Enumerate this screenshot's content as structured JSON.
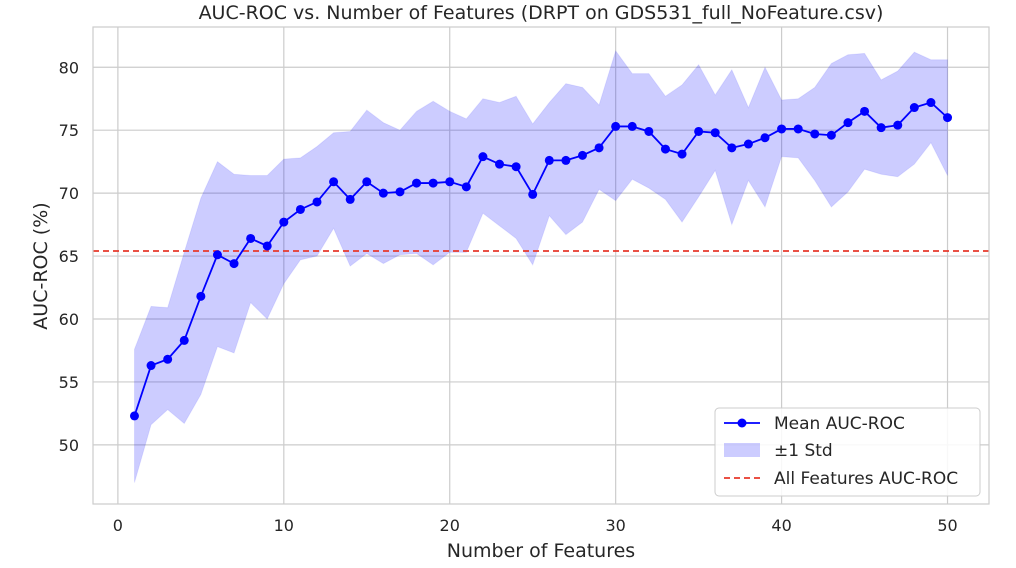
{
  "chart_data": {
    "type": "line",
    "title": "AUC-ROC vs. Number of Features (DRPT on GDS531_full_NoFeature.csv)",
    "xlabel": "Number of Features",
    "ylabel": "AUC-ROC (%)",
    "xlim": [
      -1.5,
      52.5
    ],
    "ylim": [
      45.3,
      83.2
    ],
    "xticks": [
      0,
      10,
      20,
      30,
      40,
      50
    ],
    "yticks": [
      50,
      55,
      60,
      65,
      70,
      75,
      80
    ],
    "grid": true,
    "legend_position": "lower-right",
    "x": [
      1,
      2,
      3,
      4,
      5,
      6,
      7,
      8,
      9,
      10,
      11,
      12,
      13,
      14,
      15,
      16,
      17,
      18,
      19,
      20,
      21,
      22,
      23,
      24,
      25,
      26,
      27,
      28,
      29,
      30,
      31,
      32,
      33,
      34,
      35,
      36,
      37,
      38,
      39,
      40,
      41,
      42,
      43,
      44,
      45,
      46,
      47,
      48,
      49,
      50
    ],
    "series": [
      {
        "name": "Mean AUC-ROC",
        "color": "#0000ff",
        "marker": "circle",
        "values": [
          52.3,
          56.3,
          56.8,
          58.3,
          61.8,
          65.1,
          64.4,
          66.4,
          65.8,
          67.7,
          68.7,
          69.3,
          70.9,
          69.5,
          70.9,
          70.0,
          70.1,
          70.8,
          70.8,
          70.9,
          70.5,
          72.9,
          72.3,
          72.1,
          69.9,
          72.6,
          72.6,
          73.0,
          73.6,
          75.3,
          75.3,
          74.9,
          73.5,
          73.1,
          74.9,
          74.8,
          73.6,
          73.9,
          74.4,
          75.1,
          75.1,
          74.7,
          74.6,
          75.6,
          76.5,
          75.2,
          75.4,
          76.8,
          77.2,
          76.0
        ]
      },
      {
        "name": "±1 Std",
        "color": "#0000ff",
        "fill_opacity": 0.2,
        "upper": [
          57.6,
          61.0,
          60.9,
          65.3,
          69.6,
          72.5,
          71.5,
          71.4,
          71.4,
          72.7,
          72.8,
          73.7,
          74.8,
          74.9,
          76.6,
          75.6,
          75.0,
          76.5,
          77.3,
          76.5,
          75.9,
          77.5,
          77.2,
          77.7,
          75.5,
          77.2,
          78.7,
          78.4,
          77.0,
          81.3,
          79.5,
          79.5,
          77.7,
          78.6,
          80.2,
          77.8,
          79.8,
          76.8,
          80.0,
          77.4,
          77.5,
          78.4,
          80.3,
          81.0,
          81.1,
          79.0,
          79.7,
          81.2,
          80.6,
          80.6
        ],
        "lower": [
          47.0,
          51.6,
          52.8,
          51.7,
          54.0,
          57.8,
          57.3,
          61.3,
          60.0,
          62.8,
          64.7,
          65.0,
          67.2,
          64.2,
          65.2,
          64.4,
          65.1,
          65.2,
          64.3,
          65.3,
          65.3,
          68.4,
          67.4,
          66.4,
          64.3,
          68.2,
          66.7,
          67.7,
          70.3,
          69.4,
          71.1,
          70.4,
          69.5,
          67.7,
          69.7,
          71.8,
          67.5,
          71.0,
          68.9,
          72.9,
          72.8,
          71.0,
          68.9,
          70.1,
          71.9,
          71.5,
          71.3,
          72.3,
          74.0,
          71.4
        ]
      },
      {
        "name": "All Features AUC-ROC",
        "color": "#e8392b",
        "style": "dashed",
        "hline": 65.4
      }
    ]
  }
}
